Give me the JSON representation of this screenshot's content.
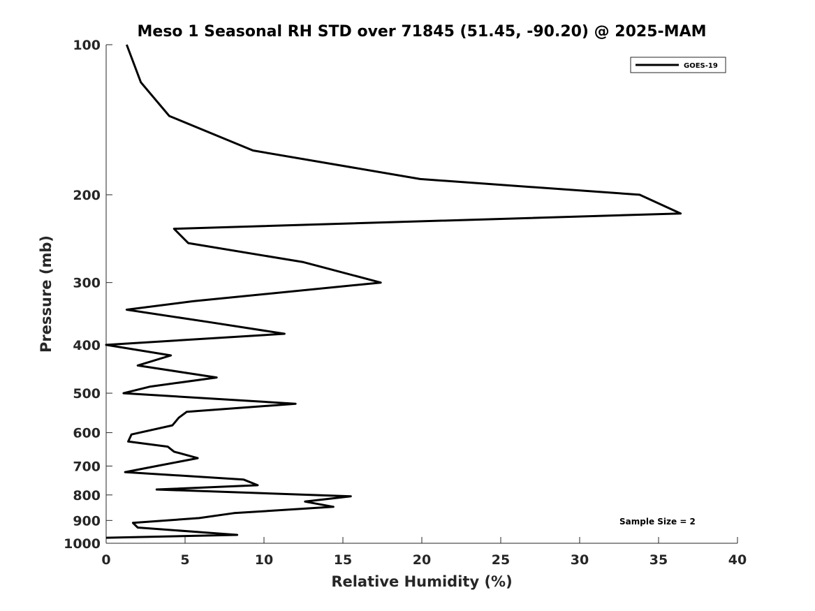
{
  "chart_data": {
    "type": "line",
    "title": "Meso 1 Seasonal RH STD over 71845 (51.45, -90.20) @ 2025-MAM",
    "xlabel": "Relative Humidity (%)",
    "ylabel": "Pressure (mb)",
    "xlim": [
      0,
      40
    ],
    "ylim": [
      100,
      1000
    ],
    "y_scale": "log",
    "y_reversed": true,
    "x_ticks": [
      "0",
      "5",
      "10",
      "15",
      "20",
      "25",
      "30",
      "35",
      "40"
    ],
    "y_ticks": [
      "100",
      "200",
      "300",
      "400",
      "500",
      "600",
      "700",
      "800",
      "900",
      "1000"
    ],
    "grid": false,
    "legend_position": "top-right",
    "annotation": "Sample Size = 2",
    "series": [
      {
        "name": "GOES-19",
        "color": "#000000",
        "points": [
          [
            1.3,
            100
          ],
          [
            2.2,
            119
          ],
          [
            4.0,
            139
          ],
          [
            9.3,
            163
          ],
          [
            19.9,
            186
          ],
          [
            33.8,
            200
          ],
          [
            36.4,
            218
          ],
          [
            4.3,
            234
          ],
          [
            5.2,
            250
          ],
          [
            12.5,
            273
          ],
          [
            17.4,
            300
          ],
          [
            5.5,
            327
          ],
          [
            1.3,
            340
          ],
          [
            6.5,
            360
          ],
          [
            11.3,
            380
          ],
          [
            0.0,
            400
          ],
          [
            4.1,
            420
          ],
          [
            2.0,
            440
          ],
          [
            7.0,
            465
          ],
          [
            2.8,
            485
          ],
          [
            1.1,
            500
          ],
          [
            12.0,
            525
          ],
          [
            5.1,
            545
          ],
          [
            4.6,
            560
          ],
          [
            4.2,
            580
          ],
          [
            1.6,
            605
          ],
          [
            1.4,
            625
          ],
          [
            3.9,
            640
          ],
          [
            4.3,
            655
          ],
          [
            5.8,
            675
          ],
          [
            3.2,
            700
          ],
          [
            1.2,
            720
          ],
          [
            8.7,
            745
          ],
          [
            9.6,
            765
          ],
          [
            3.2,
            780
          ],
          [
            15.5,
            805
          ],
          [
            12.6,
            825
          ],
          [
            14.4,
            845
          ],
          [
            8.1,
            870
          ],
          [
            5.9,
            890
          ],
          [
            1.7,
            910
          ],
          [
            2.0,
            930
          ],
          [
            8.3,
            962
          ],
          [
            0.0,
            975
          ]
        ]
      }
    ]
  }
}
